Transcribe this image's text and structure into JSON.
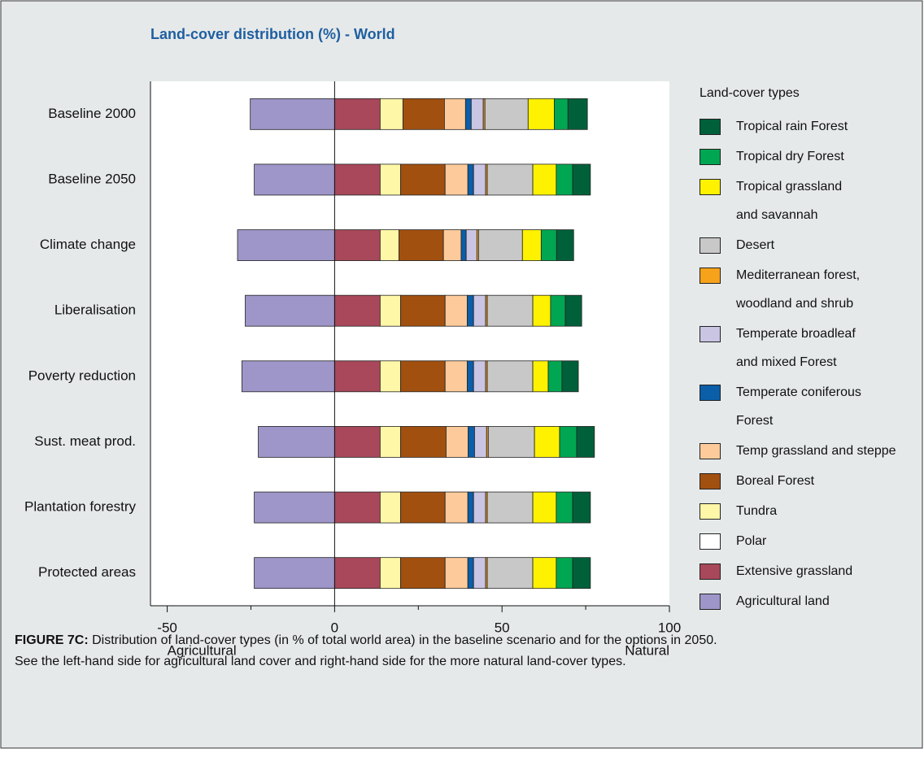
{
  "chart_data": {
    "type": "bar",
    "orientation": "horizontal",
    "stacked": true,
    "title": "Land-cover distribution (%) - World",
    "categories": [
      "Baseline 2000",
      "Baseline 2050",
      "Climate change",
      "Liberalisation",
      "Poverty reduction",
      "Sust. meat prod.",
      "Plantation forestry",
      "Protected areas"
    ],
    "series": [
      {
        "name": "Agricultural land",
        "color": "#9e95c8",
        "values": [
          -25.2,
          -24,
          -29,
          -26.7,
          -27.7,
          -22.8,
          -24,
          -24
        ]
      },
      {
        "name": "Extensive grassland",
        "color": "#a8485a",
        "values": [
          13.6,
          13.6,
          13.6,
          13.6,
          13.6,
          13.6,
          13.6,
          13.6
        ]
      },
      {
        "name": "Polar",
        "color": "#ffffff",
        "values": [
          0,
          0,
          0,
          0,
          0,
          0,
          0,
          0
        ]
      },
      {
        "name": "Tundra",
        "color": "#fff7a8",
        "values": [
          6.8,
          6.1,
          5.6,
          6.1,
          6.1,
          6.1,
          6.1,
          6.1
        ]
      },
      {
        "name": "Boreal Forest",
        "color": "#a2500f",
        "values": [
          12.4,
          13.3,
          13.3,
          13.3,
          13.3,
          13.6,
          13.3,
          13.3
        ]
      },
      {
        "name": "Temp grassland and steppe",
        "color": "#fdcb9b",
        "values": [
          6.3,
          6.8,
          5.3,
          6.6,
          6.6,
          6.6,
          6.8,
          6.8
        ]
      },
      {
        "name": "Temperate coniferous\nForest",
        "color": "#0b5ea8",
        "values": [
          1.7,
          1.7,
          1.5,
          1.9,
          1.9,
          1.9,
          1.7,
          1.7
        ]
      },
      {
        "name": "Temperate broadleaf\nand mixed Forest",
        "color": "#c9c5e3",
        "values": [
          3.6,
          3.6,
          3.2,
          3.6,
          3.6,
          3.6,
          3.6,
          3.6
        ]
      },
      {
        "name": "Mediterranean forest,\nwoodland and shrub",
        "color": "#f7a21b",
        "values": [
          0.5,
          0.5,
          0.5,
          0.5,
          0.5,
          0.5,
          0.5,
          0.5
        ]
      },
      {
        "name": "Desert",
        "color": "#c8c8c8",
        "values": [
          12.9,
          13.6,
          13.1,
          13.6,
          13.6,
          13.8,
          13.6,
          13.6
        ]
      },
      {
        "name": "Tropical grassland\nand savannah",
        "color": "#fff200",
        "values": [
          7.8,
          7.0,
          5.6,
          5.3,
          4.6,
          7.5,
          7.0,
          7.0
        ]
      },
      {
        "name": "Tropical dry Forest",
        "color": "#00a651",
        "values": [
          4.1,
          4.9,
          4.6,
          4.4,
          4.1,
          5.1,
          4.9,
          4.9
        ]
      },
      {
        "name": "Tropical rain Forest",
        "color": "#00603a",
        "values": [
          5.8,
          5.3,
          5.1,
          4.9,
          4.9,
          5.3,
          5.3,
          5.3
        ]
      }
    ],
    "xlim": [
      -55,
      100
    ],
    "xticks": [
      -50,
      0,
      50,
      100
    ],
    "xticks_minor": [
      -25,
      25,
      75
    ],
    "x_label_left": "Agricultural",
    "x_label_right": "Natural",
    "legend_title": "Land-cover types",
    "legend": "right",
    "caption_label": "FIGURE 7C:",
    "caption": "Distribution of land-cover types (in % of total world area) in the baseline scenario and for the options in 2050.\nSee the left-hand side for agricultural land cover and right-hand side for the more natural land-cover types."
  }
}
